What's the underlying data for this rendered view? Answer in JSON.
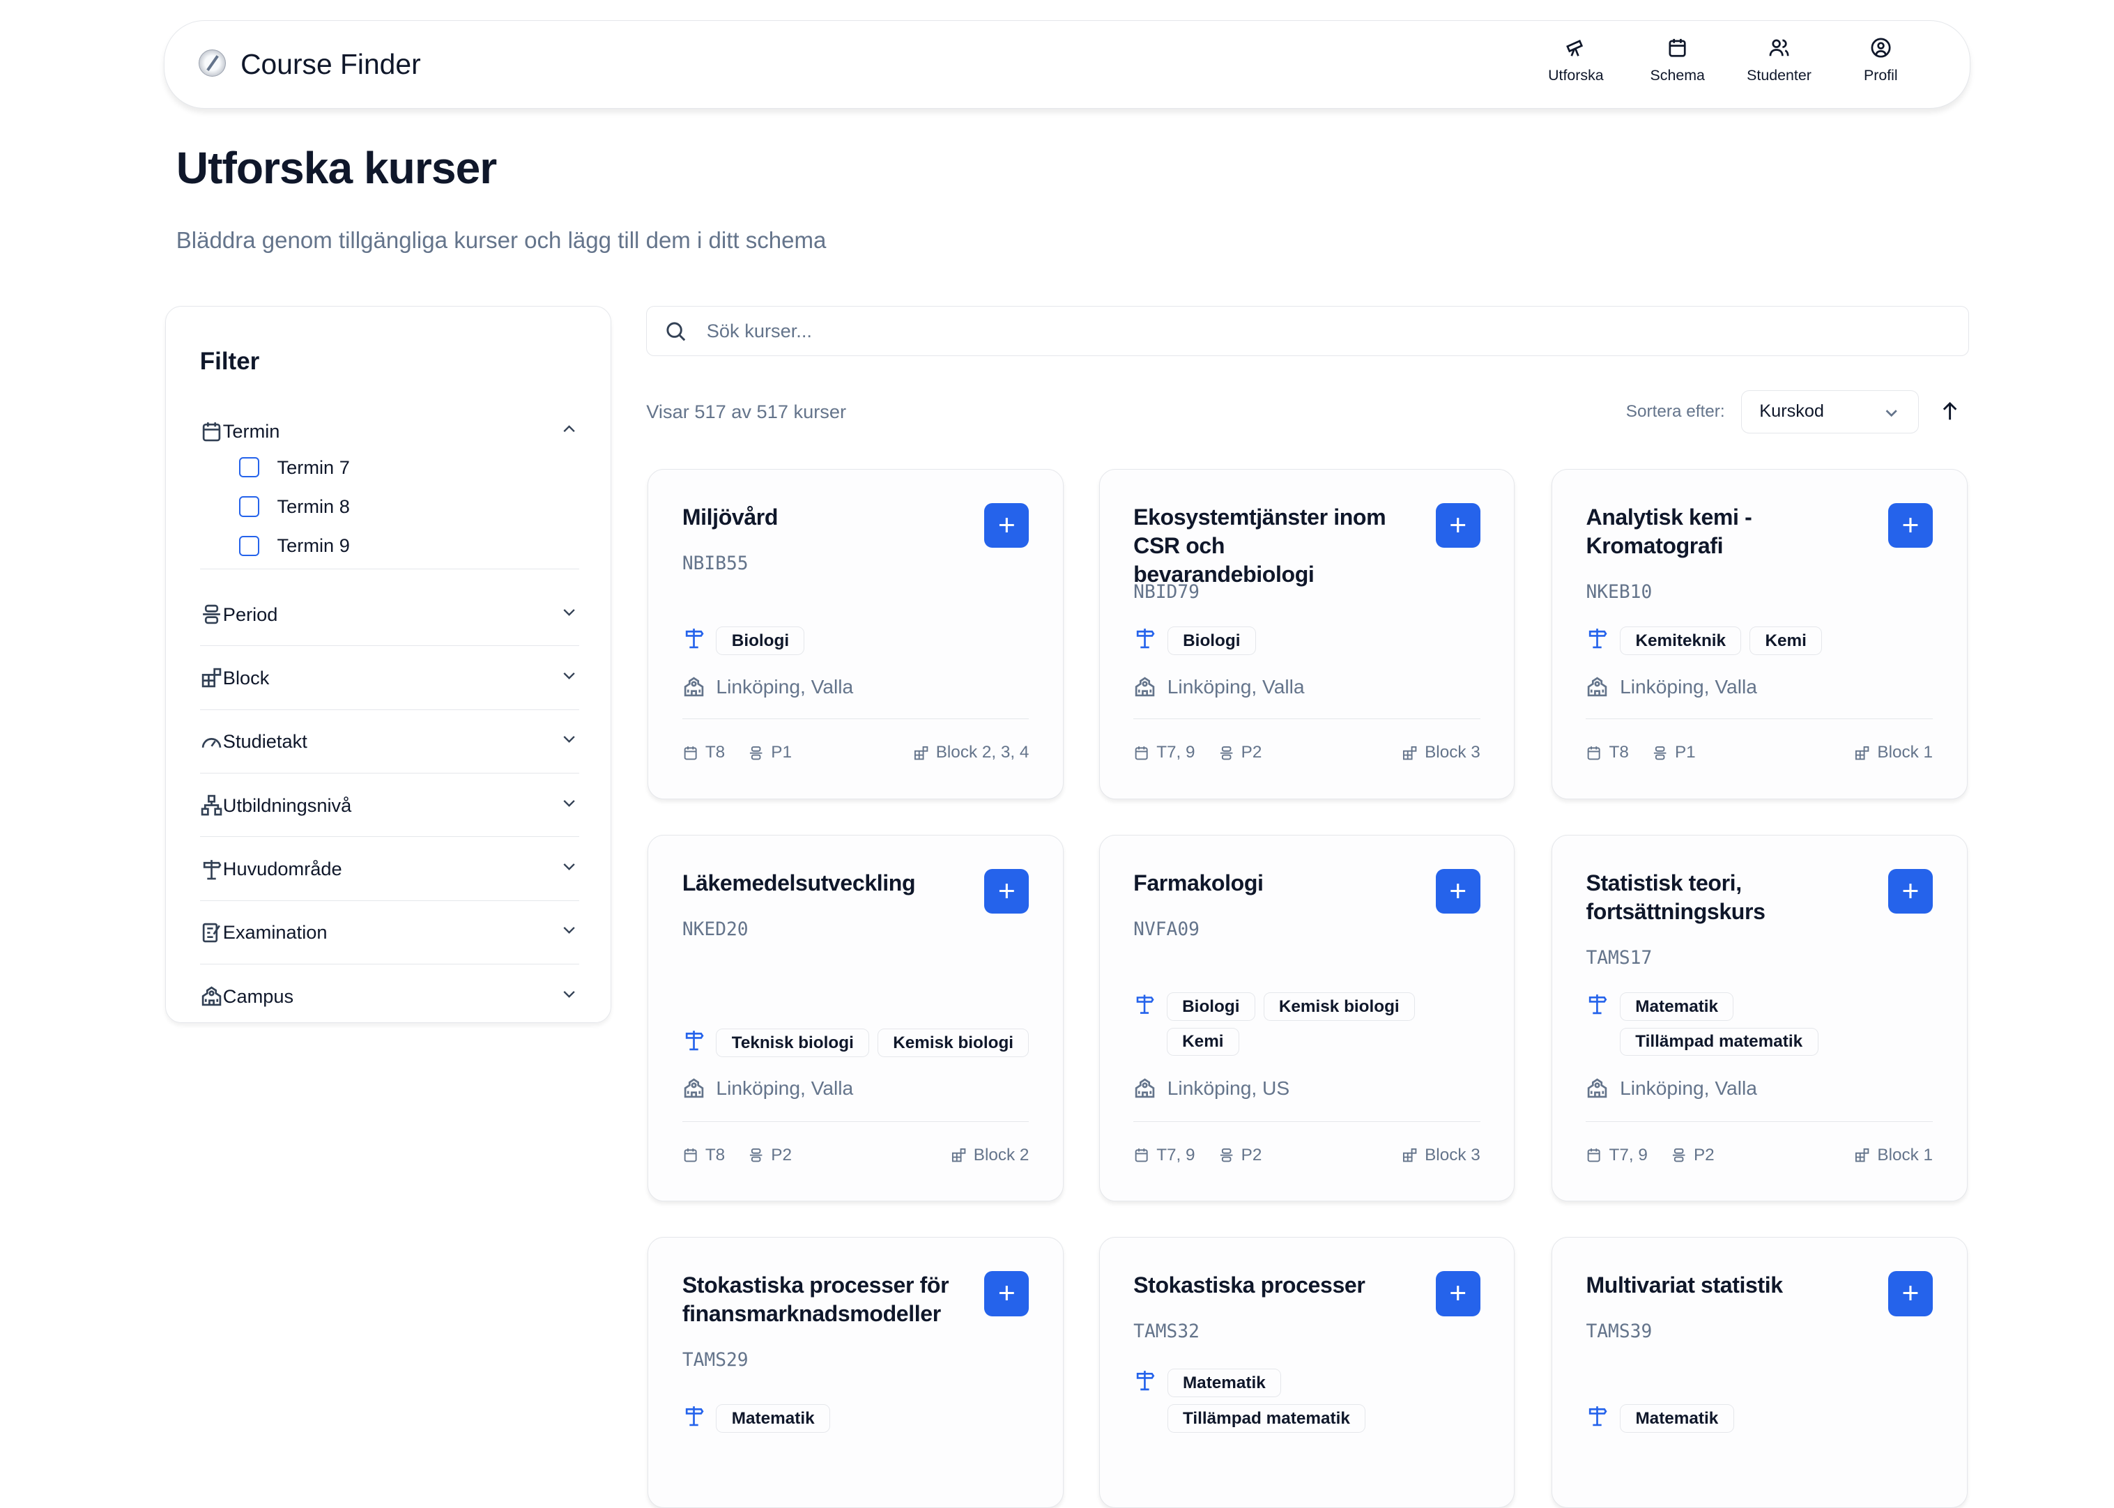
{
  "app": {
    "title": "Course Finder",
    "logo_icon": "compass-icon"
  },
  "nav": [
    {
      "label": "Utforska",
      "icon": "telescope-icon"
    },
    {
      "label": "Schema",
      "icon": "calendar-icon"
    },
    {
      "label": "Studenter",
      "icon": "users-icon"
    },
    {
      "label": "Profil",
      "icon": "user-circle-icon"
    }
  ],
  "page": {
    "title": "Utforska kurser",
    "subtitle": "Bläddra genom tillgängliga kurser och lägg till dem i ditt schema"
  },
  "filter": {
    "title": "Filter",
    "sections": [
      {
        "label": "Termin",
        "icon": "calendar-icon",
        "expanded": true,
        "options": [
          "Termin 7",
          "Termin 8",
          "Termin 9"
        ]
      },
      {
        "label": "Period",
        "icon": "period-icon"
      },
      {
        "label": "Block",
        "icon": "blocks-icon"
      },
      {
        "label": "Studietakt",
        "icon": "gauge-icon"
      },
      {
        "label": "Utbildningsnivå",
        "icon": "hierarchy-icon"
      },
      {
        "label": "Huvudområde",
        "icon": "signpost-icon"
      },
      {
        "label": "Examination",
        "icon": "exam-icon"
      },
      {
        "label": "Campus",
        "icon": "school-icon"
      }
    ]
  },
  "search": {
    "placeholder": "Sök kurser...",
    "value": ""
  },
  "results": {
    "count_text": "Visar 517 av 517 kurser",
    "sort_label": "Sortera efter:",
    "sort_value": "Kurskod",
    "sort_direction": "ascending"
  },
  "colors": {
    "accent": "#2563eb",
    "text": "#0f172a",
    "muted": "#64748b",
    "border": "#e5e7eb"
  },
  "courses": [
    {
      "title": "Miljövård",
      "code": "NBIB55",
      "subjects": [
        "Biologi"
      ],
      "campus": "Linköping, Valla",
      "term": "T8",
      "period": "P1",
      "block": "Block 2, 3, 4"
    },
    {
      "title": "Ekosystemtjänster inom CSR och bevarandebiologi",
      "code": "NBID79",
      "subjects": [
        "Biologi"
      ],
      "campus": "Linköping, Valla",
      "term": "T7, 9",
      "period": "P2",
      "block": "Block 3"
    },
    {
      "title": "Analytisk kemi - Kromatografi",
      "code": "NKEB10",
      "subjects": [
        "Kemiteknik",
        "Kemi"
      ],
      "campus": "Linköping, Valla",
      "term": "T8",
      "period": "P1",
      "block": "Block 1"
    },
    {
      "title": "Läkemedelsutveckling",
      "code": "NKED20",
      "subjects": [
        "Teknisk biologi",
        "Kemisk biologi"
      ],
      "campus": "Linköping, Valla",
      "term": "T8",
      "period": "P2",
      "block": "Block 2"
    },
    {
      "title": "Farmakologi",
      "code": "NVFA09",
      "subjects": [
        "Biologi",
        "Kemisk biologi",
        "Kemi"
      ],
      "campus": "Linköping, US",
      "term": "T7, 9",
      "period": "P2",
      "block": "Block 3"
    },
    {
      "title": "Statistisk teori, fortsättningskurs",
      "code": "TAMS17",
      "subjects": [
        "Matematik",
        "Tillämpad matematik"
      ],
      "campus": "Linköping, Valla",
      "term": "T7, 9",
      "period": "P2",
      "block": "Block 1"
    },
    {
      "title": "Stokastiska processer för finansmarknadsmodeller",
      "code": "TAMS29",
      "subjects": [
        "Matematik"
      ]
    },
    {
      "title": "Stokastiska processer",
      "code": "TAMS32",
      "subjects": [
        "Matematik",
        "Tillämpad matematik"
      ]
    },
    {
      "title": "Multivariat statistik",
      "code": "TAMS39",
      "subjects": [
        "Matematik"
      ]
    }
  ]
}
